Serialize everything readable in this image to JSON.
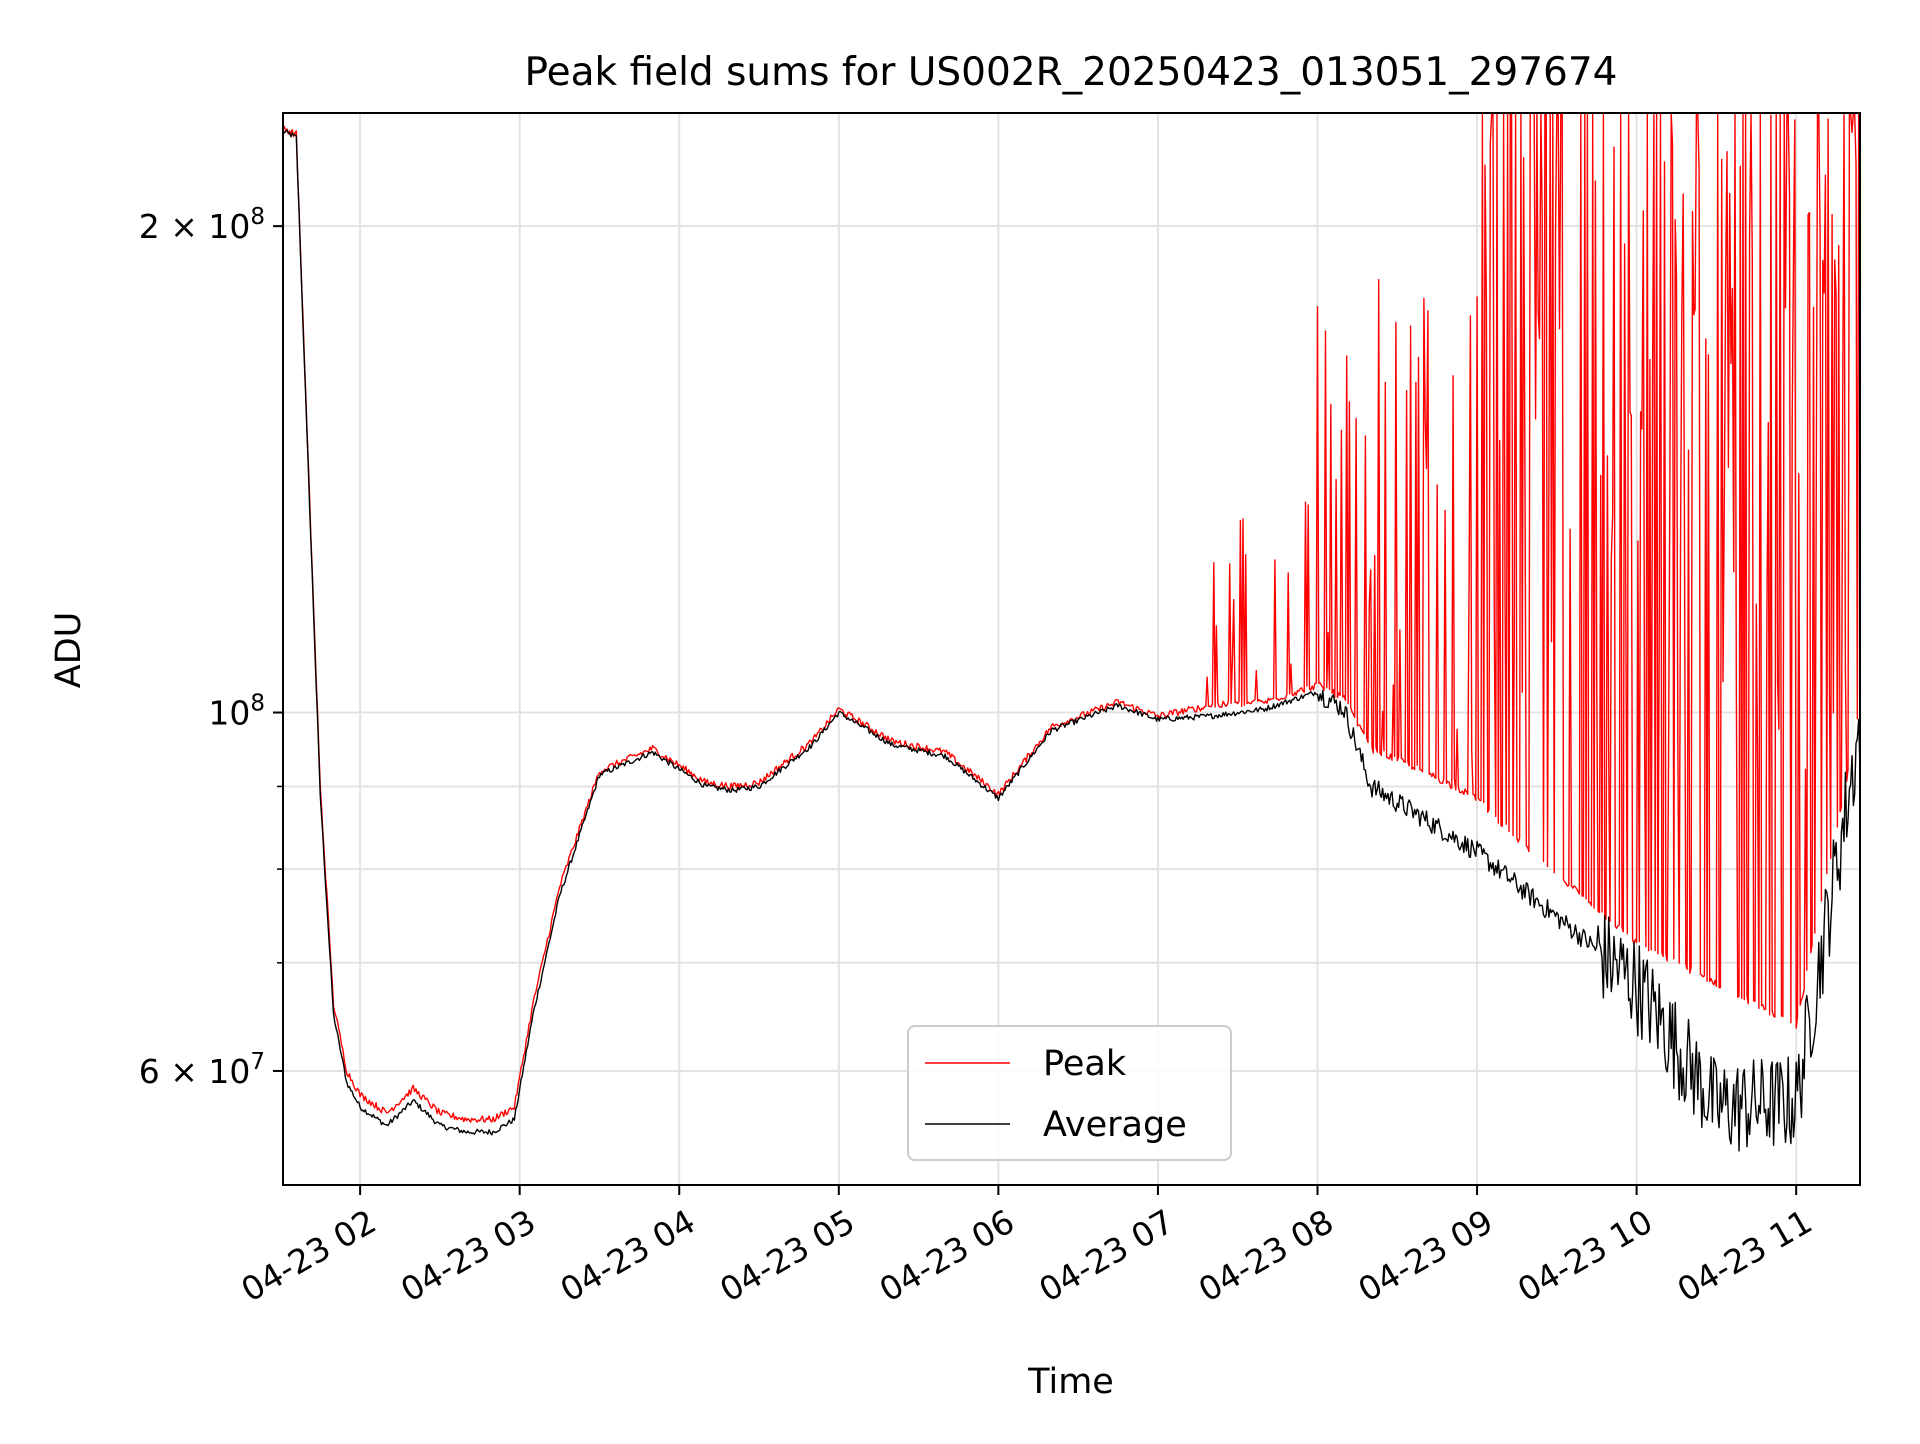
{
  "chart_data": {
    "type": "line",
    "title": "Peak field sums for US002R_20250423_013051_297674",
    "xlabel": "Time",
    "ylabel": "ADU",
    "yscale": "log",
    "xlim": [
      "2025-04-23 01:31",
      "2025-04-23 11:24"
    ],
    "ylim": [
      51000000,
      235000000
    ],
    "grid": true,
    "legend": "lower center",
    "x_ticks": [
      {
        "value": "2025-04-23 02:00",
        "label": "04-23 02"
      },
      {
        "value": "2025-04-23 03:00",
        "label": "04-23 03"
      },
      {
        "value": "2025-04-23 04:00",
        "label": "04-23 04"
      },
      {
        "value": "2025-04-23 05:00",
        "label": "04-23 05"
      },
      {
        "value": "2025-04-23 06:00",
        "label": "04-23 06"
      },
      {
        "value": "2025-04-23 07:00",
        "label": "04-23 07"
      },
      {
        "value": "2025-04-23 08:00",
        "label": "04-23 08"
      },
      {
        "value": "2025-04-23 09:00",
        "label": "04-23 09"
      },
      {
        "value": "2025-04-23 10:00",
        "label": "04-23 10"
      },
      {
        "value": "2025-04-23 11:00",
        "label": "04-23 11"
      }
    ],
    "y_major_ticks": [
      {
        "value": 60000000,
        "base": "6",
        "exp": "7"
      },
      {
        "value": 100000000,
        "base": "",
        "exp": "8"
      },
      {
        "value": 200000000,
        "base": "2",
        "exp": "8"
      }
    ],
    "y_minor_ticks": [
      70000000,
      80000000,
      90000000
    ],
    "series": [
      {
        "name": "Peak",
        "color": "#ff0000",
        "x": [
          "2025-04-23 01:31",
          "2025-04-23 01:36",
          "2025-04-23 01:40",
          "2025-04-23 01:45",
          "2025-04-23 01:50",
          "2025-04-23 01:55",
          "2025-04-23 02:00",
          "2025-04-23 02:10",
          "2025-04-23 02:20",
          "2025-04-23 02:30",
          "2025-04-23 02:40",
          "2025-04-23 02:50",
          "2025-04-23 02:58",
          "2025-04-23 03:05",
          "2025-04-23 03:15",
          "2025-04-23 03:30",
          "2025-04-23 03:50",
          "2025-04-23 04:10",
          "2025-04-23 04:20",
          "2025-04-23 04:30",
          "2025-04-23 04:50",
          "2025-04-23 05:00",
          "2025-04-23 05:20",
          "2025-04-23 05:40",
          "2025-04-23 06:00",
          "2025-04-23 06:20",
          "2025-04-23 06:45",
          "2025-04-23 07:00",
          "2025-04-23 07:20",
          "2025-04-23 07:40",
          "2025-04-23 08:00",
          "2025-04-23 08:10",
          "2025-04-23 08:20",
          "2025-04-23 08:40",
          "2025-04-23 09:00",
          "2025-04-23 09:20",
          "2025-04-23 09:40",
          "2025-04-23 10:00",
          "2025-04-23 10:30",
          "2025-04-23 11:00",
          "2025-04-23 11:24"
        ],
        "values": [
          230000000,
          228000000,
          150000000,
          90000000,
          66000000,
          60000000,
          58000000,
          56500000,
          58500000,
          56500000,
          56000000,
          56000000,
          57000000,
          66000000,
          78000000,
          92000000,
          95000000,
          90500000,
          90000000,
          90500000,
          96000000,
          100500000,
          96000000,
          94500000,
          89000000,
          98000000,
          101500000,
          99500000,
          101000000,
          101500000,
          104000000,
          102000000,
          95000000,
          92000000,
          88500000,
          82000000,
          77000000,
          72000000,
          68000000,
          64000000,
          100000000
        ]
      },
      {
        "name": "Average",
        "color": "#000000",
        "x": [
          "2025-04-23 01:31",
          "2025-04-23 01:36",
          "2025-04-23 01:40",
          "2025-04-23 01:45",
          "2025-04-23 01:50",
          "2025-04-23 01:55",
          "2025-04-23 02:00",
          "2025-04-23 02:10",
          "2025-04-23 02:20",
          "2025-04-23 02:30",
          "2025-04-23 02:40",
          "2025-04-23 02:50",
          "2025-04-23 02:58",
          "2025-04-23 03:05",
          "2025-04-23 03:15",
          "2025-04-23 03:30",
          "2025-04-23 03:50",
          "2025-04-23 04:10",
          "2025-04-23 04:20",
          "2025-04-23 04:30",
          "2025-04-23 04:50",
          "2025-04-23 05:00",
          "2025-04-23 05:20",
          "2025-04-23 05:40",
          "2025-04-23 06:00",
          "2025-04-23 06:20",
          "2025-04-23 06:45",
          "2025-04-23 07:00",
          "2025-04-23 07:20",
          "2025-04-23 07:40",
          "2025-04-23 08:00",
          "2025-04-23 08:10",
          "2025-04-23 08:20",
          "2025-04-23 08:40",
          "2025-04-23 09:00",
          "2025-04-23 09:20",
          "2025-04-23 09:40",
          "2025-04-23 10:00",
          "2025-04-23 10:30",
          "2025-04-23 11:00",
          "2025-04-23 11:24"
        ],
        "values": [
          229000000,
          227000000,
          149000000,
          89000000,
          65000000,
          59000000,
          57000000,
          55500000,
          57500000,
          55500000,
          55000000,
          55000000,
          56000000,
          65000000,
          77000000,
          91500000,
          94500000,
          90000000,
          89500000,
          90000000,
          95500000,
          100000000,
          95500000,
          94000000,
          88500000,
          97500000,
          101000000,
          99000000,
          99500000,
          100500000,
          103000000,
          100500000,
          90000000,
          86000000,
          82000000,
          77000000,
          72500000,
          68000000,
          57000000,
          57500000,
          98000000
        ]
      }
    ]
  }
}
